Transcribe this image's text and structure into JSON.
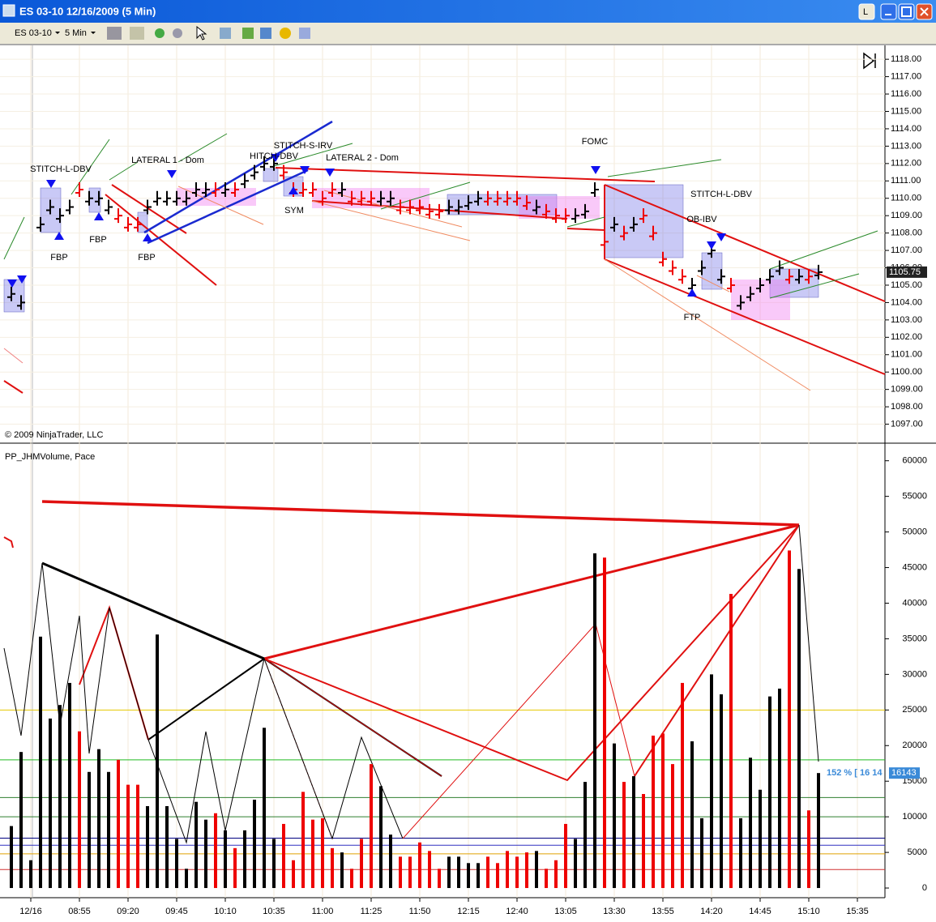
{
  "window": {
    "title": "ES 03-10  12/16/2009 (5 Min)",
    "instrument": "ES 03-10",
    "interval": "5 Min"
  },
  "chart_data": [
    {
      "type": "ohlc",
      "copyright": "© 2009 NinjaTrader, LLC",
      "close": [
        1104.5,
        1104,
        null,
        1108.5,
        1109.5,
        1109,
        1109.5,
        1110.5,
        1110,
        1110,
        1109.5,
        1109,
        1108.5,
        1108.5,
        1109.5,
        1110,
        1110,
        1110,
        1110,
        1110.5,
        1110.5,
        1110.5,
        1110.5,
        1110.5,
        1111,
        1111.5,
        1112,
        1112,
        1111.5,
        1110.5,
        1110.5,
        1110.5,
        1110,
        1110.5,
        1110.5,
        1110,
        1110,
        1110,
        1110,
        1110,
        1109.5,
        1109.5,
        1109.5,
        1109.25,
        1109.25,
        1109.5,
        1109.5,
        1109.75,
        1110,
        1110,
        1110,
        1110,
        1110,
        1109.75,
        1109.5,
        1109.25,
        1109,
        1109,
        1109,
        1109.25,
        1110.5,
        1107.5,
        1108.5,
        1108,
        1108.5,
        1109,
        1108,
        1106.5,
        1106,
        1105.5,
        1105,
        1106,
        1107,
        1105.5,
        1105,
        1104,
        1104.5,
        1105,
        1105.5,
        1106,
        1105.5,
        1105.5,
        1105.5,
        1105.75
      ],
      "last_price": 1105.75,
      "ylim": [
        1096,
        1118.8
      ],
      "yticks": [
        {
          "value": 1118,
          "label": "1118.00"
        },
        {
          "value": 1117,
          "label": "1117.00"
        },
        {
          "value": 1116,
          "label": "1116.00"
        },
        {
          "value": 1115,
          "label": "1115.00"
        },
        {
          "value": 1114,
          "label": "1114.00"
        },
        {
          "value": 1113,
          "label": "1113.00"
        },
        {
          "value": 1112,
          "label": "1112.00"
        },
        {
          "value": 1111,
          "label": "1111.00"
        },
        {
          "value": 1110,
          "label": "1110.00"
        },
        {
          "value": 1109,
          "label": "1109.00"
        },
        {
          "value": 1108,
          "label": "1108.00"
        },
        {
          "value": 1107,
          "label": "1107.00"
        },
        {
          "value": 1106,
          "label": "1106.00"
        },
        {
          "value": 1105,
          "label": "1105.00"
        },
        {
          "value": 1104,
          "label": "1104.00"
        },
        {
          "value": 1103,
          "label": "1103.00"
        },
        {
          "value": 1102,
          "label": "1102.00"
        },
        {
          "value": 1101,
          "label": "1101.00"
        },
        {
          "value": 1100,
          "label": "1100.00"
        },
        {
          "value": 1099,
          "label": "1099.00"
        },
        {
          "value": 1098,
          "label": "1098.00"
        },
        {
          "value": 1097,
          "label": "1097.00"
        }
      ],
      "annotations": [
        "STITCH-L-DBV",
        "FBP",
        "FBP",
        "FBP",
        "LATERAL 1 - Dom",
        "HITCH-DBV",
        "STITCH-S-IRV",
        "SYM",
        "LATERAL 2 - Dom",
        "FOMC",
        "STITCH-L-DBV",
        "OB-IBV",
        "FTP"
      ],
      "grid": true
    },
    {
      "type": "bar",
      "title": "PP_JHMVolume, Pace",
      "values": [
        8700,
        19100,
        3900,
        35300,
        23800,
        25700,
        28800,
        22000,
        16300,
        19500,
        16300,
        18000,
        14500,
        14500,
        11500,
        35600,
        11500,
        6900,
        2700,
        12100,
        9600,
        10500,
        8100,
        5600,
        8100,
        12400,
        22500,
        6900,
        9000,
        3900,
        13500,
        9600,
        9800,
        5600,
        5000,
        2700,
        6900,
        17400,
        14300,
        7500,
        4400,
        4400,
        6400,
        5200,
        2700,
        4400,
        4400,
        3500,
        3500,
        4400,
        3500,
        5200,
        4400,
        5000,
        5200,
        2700,
        3900,
        9000,
        6900,
        14900,
        47000,
        46400,
        20300,
        14900,
        15700,
        13200,
        21400,
        21700,
        17400,
        28800,
        20600,
        9800,
        30000,
        27200,
        41300,
        9800,
        18300,
        13800,
        26900,
        28000,
        47400,
        44800,
        10900,
        16143
      ],
      "bar_colors": [
        "#000",
        "#000",
        "#000",
        "#000",
        "#000",
        "#000",
        "#000",
        "#e00",
        "#000",
        "#000",
        "#000",
        "#e00",
        "#e00",
        "#e00",
        "#000",
        "#000",
        "#000",
        "#000",
        "#000",
        "#000",
        "#000",
        "#e00",
        "#000",
        "#e00",
        "#000",
        "#000",
        "#000",
        "#000",
        "#e00",
        "#e00",
        "#e00",
        "#e00",
        "#e00",
        "#e00",
        "#000",
        "#e00",
        "#e00",
        "#e00",
        "#000",
        "#000",
        "#e00",
        "#e00",
        "#e00",
        "#e00",
        "#e00",
        "#000",
        "#000",
        "#000",
        "#000",
        "#e00",
        "#e00",
        "#e00",
        "#e00",
        "#e00",
        "#000",
        "#e00",
        "#e00",
        "#e00",
        "#000",
        "#000",
        "#000",
        "#e00",
        "#000",
        "#e00",
        "#000",
        "#e00",
        "#e00",
        "#e00",
        "#e00",
        "#e00",
        "#000",
        "#000",
        "#000",
        "#000",
        "#e00",
        "#000",
        "#000",
        "#000",
        "#000",
        "#000",
        "#e00",
        "#000",
        "#e00",
        "#000"
      ],
      "pace_label": "152 % [ 16 14",
      "last_value": 16143,
      "levels": [
        {
          "value": 25000,
          "color": "#e6c800"
        },
        {
          "value": 18000,
          "color": "#22bb22"
        },
        {
          "value": 12700,
          "color": "#2f7f2f"
        },
        {
          "value": 10000,
          "color": "#2f7f2f"
        },
        {
          "value": 7000,
          "color": "#000080"
        },
        {
          "value": 6000,
          "color": "#3030c0"
        },
        {
          "value": 4800,
          "color": "#e0a000"
        },
        {
          "value": 2600,
          "color": "#d03030"
        }
      ],
      "ylim": [
        -1360,
        61900
      ],
      "yticks": [
        60000,
        55000,
        50000,
        45000,
        40000,
        35000,
        30000,
        25000,
        20000,
        15000,
        10000,
        5000,
        0
      ],
      "xticks": [
        "12/16",
        "08:55",
        "09:20",
        "09:45",
        "10:10",
        "10:35",
        "11:00",
        "11:25",
        "11:50",
        "12:15",
        "12:40",
        "13:05",
        "13:30",
        "13:55",
        "14:20",
        "14:45",
        "15:10",
        "15:35"
      ]
    }
  ]
}
